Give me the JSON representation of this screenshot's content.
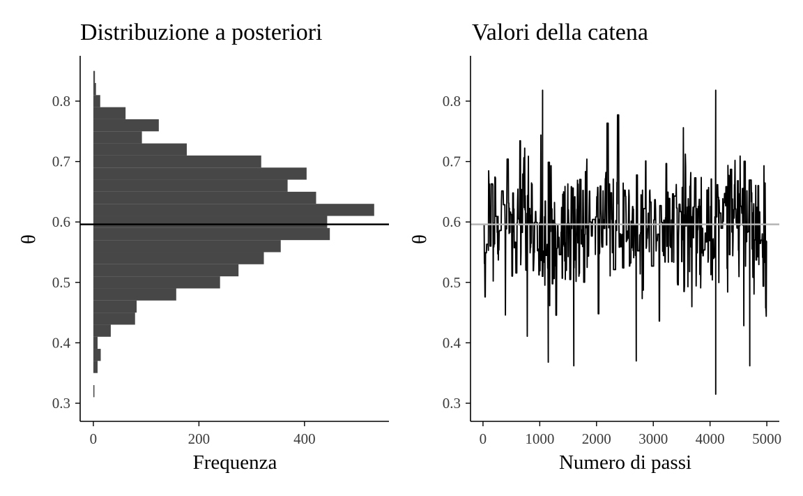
{
  "chart_data": [
    {
      "type": "bar",
      "orientation": "horizontal",
      "title": "Distribuzione a posteriori",
      "xlabel": "Frequenza",
      "ylabel": "θ",
      "xlim": [
        -25,
        560
      ],
      "ylim": [
        0.27,
        0.875
      ],
      "xticks": [
        0,
        200,
        400
      ],
      "yticks": [
        0.3,
        0.4,
        0.5,
        0.6,
        0.7,
        0.8
      ],
      "bin_width": 0.02,
      "bins": [
        {
          "y0": 0.31,
          "y1": 0.33,
          "count": 2
        },
        {
          "y0": 0.35,
          "y1": 0.37,
          "count": 8
        },
        {
          "y0": 0.37,
          "y1": 0.39,
          "count": 14
        },
        {
          "y0": 0.39,
          "y1": 0.41,
          "count": 8
        },
        {
          "y0": 0.41,
          "y1": 0.43,
          "count": 33
        },
        {
          "y0": 0.43,
          "y1": 0.45,
          "count": 79
        },
        {
          "y0": 0.45,
          "y1": 0.47,
          "count": 82
        },
        {
          "y0": 0.47,
          "y1": 0.49,
          "count": 157
        },
        {
          "y0": 0.49,
          "y1": 0.51,
          "count": 240
        },
        {
          "y0": 0.51,
          "y1": 0.53,
          "count": 275
        },
        {
          "y0": 0.53,
          "y1": 0.55,
          "count": 323
        },
        {
          "y0": 0.55,
          "y1": 0.57,
          "count": 355
        },
        {
          "y0": 0.57,
          "y1": 0.59,
          "count": 448
        },
        {
          "y0": 0.59,
          "y1": 0.61,
          "count": 443
        },
        {
          "y0": 0.61,
          "y1": 0.63,
          "count": 532
        },
        {
          "y0": 0.63,
          "y1": 0.65,
          "count": 422
        },
        {
          "y0": 0.65,
          "y1": 0.67,
          "count": 368
        },
        {
          "y0": 0.67,
          "y1": 0.69,
          "count": 404
        },
        {
          "y0": 0.69,
          "y1": 0.71,
          "count": 318
        },
        {
          "y0": 0.71,
          "y1": 0.73,
          "count": 177
        },
        {
          "y0": 0.73,
          "y1": 0.75,
          "count": 92
        },
        {
          "y0": 0.75,
          "y1": 0.77,
          "count": 124
        },
        {
          "y0": 0.77,
          "y1": 0.79,
          "count": 61
        },
        {
          "y0": 0.79,
          "y1": 0.81,
          "count": 13
        },
        {
          "y0": 0.81,
          "y1": 0.83,
          "count": 5
        },
        {
          "y0": 0.83,
          "y1": 0.85,
          "count": 3
        }
      ],
      "reference_line": {
        "y": 0.596,
        "color": "#000000"
      },
      "bar_color": "#474747",
      "grid": false
    },
    {
      "type": "line",
      "title": "Valori della catena",
      "xlabel": "Numero di passi",
      "ylabel": "θ",
      "xlim": [
        -220,
        5220
      ],
      "ylim": [
        0.27,
        0.875
      ],
      "xticks": [
        0,
        1000,
        2000,
        3000,
        4000,
        5000
      ],
      "yticks": [
        0.3,
        0.4,
        0.5,
        0.6,
        0.7,
        0.8
      ],
      "trace_summary": {
        "n_steps": 5000,
        "mean": 0.596,
        "sd": 0.062,
        "min": 0.315,
        "max": 0.818,
        "extremes": [
          {
            "x": 1050,
            "y": 0.818
          },
          {
            "x": 4100,
            "y": 0.818
          },
          {
            "x": 4100,
            "y": 0.315
          },
          {
            "x": 1600,
            "y": 0.362
          },
          {
            "x": 4700,
            "y": 0.362
          },
          {
            "x": 1150,
            "y": 0.368
          },
          {
            "x": 2700,
            "y": 0.37
          }
        ]
      },
      "reference_line": {
        "y": 0.596,
        "color": "#b5b5b5"
      },
      "line_color": "#000000",
      "grid": false
    }
  ]
}
